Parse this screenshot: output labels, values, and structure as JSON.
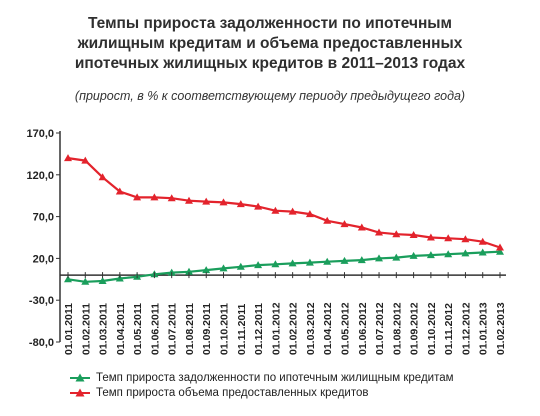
{
  "title": {
    "line1": "Темпы прироста задолженности по ипотечным",
    "line2": "жилищным кредитам и объема предоставленных",
    "line3": "ипотечных жилищных кредитов в 2011–2013 годах",
    "subtitle": "(прирост, в % к соответствующему периоду предыдущего года)"
  },
  "colors": {
    "green": "#1a9e5c",
    "red": "#e3232c",
    "axis": "#333333"
  },
  "chart_data": {
    "type": "line",
    "title": "Темпы прироста задолженности по ипотечным жилищным кредитам и объема предоставленных ипотечных жилищных кредитов в 2011–2013 годах",
    "subtitle": "(прирост, в % к соответствующему периоду предыдущего года)",
    "xlabel": "",
    "ylabel": "",
    "ylim": [
      -80,
      170
    ],
    "yticks": [
      "170,0",
      "120,0",
      "70,0",
      "20,0",
      "-30,0",
      "-80,0"
    ],
    "ytick_values": [
      170,
      120,
      70,
      20,
      -30,
      -80
    ],
    "categories": [
      "01.01.2011",
      "01.02.2011",
      "01.03.2011",
      "01.04.2011",
      "01.05.2011",
      "01.06.2011",
      "01.07.2011",
      "01.08.2011",
      "01.09.2011",
      "01.10.2011",
      "01.11.2011",
      "01.12.2011",
      "01.01.2012",
      "01.02.2012",
      "01.03.2012",
      "01.04.2012",
      "01.05.2012",
      "01.06.2012",
      "01.07.2012",
      "01.08.2012",
      "01.09.2012",
      "01.10.2012",
      "01.11.2012",
      "01.12.2012",
      "01.01.2013",
      "01.02.2013"
    ],
    "grid": false,
    "legend_position": "bottom",
    "series": [
      {
        "name": "Темп прироста задолженности по ипотечным жилищным кредитам",
        "color": "#1a9e5c",
        "marker": "triangle",
        "values": [
          -5,
          -8,
          -7,
          -4,
          -2,
          1,
          3,
          4,
          6,
          8,
          10,
          12,
          13,
          14,
          15,
          16,
          17,
          18,
          20,
          21,
          23,
          24,
          25,
          26,
          27,
          28
        ]
      },
      {
        "name": "Темп прироста объема предоставленных кредитов",
        "color": "#e3232c",
        "marker": "triangle",
        "values": [
          140,
          137,
          117,
          100,
          93,
          93,
          92,
          89,
          88,
          87,
          85,
          82,
          77,
          76,
          73,
          65,
          61,
          57,
          51,
          49,
          48,
          45,
          44,
          43,
          40,
          33
        ]
      }
    ]
  }
}
